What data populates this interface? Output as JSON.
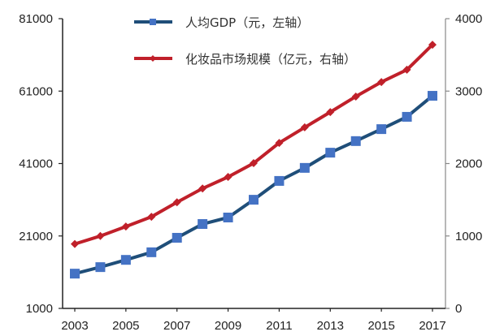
{
  "chart_data": {
    "type": "line",
    "title": "",
    "xlabel": "",
    "ylabel_left": "",
    "ylabel_right": "",
    "x": [
      2003,
      2004,
      2005,
      2006,
      2007,
      2008,
      2009,
      2010,
      2011,
      2012,
      2013,
      2014,
      2015,
      2016,
      2017
    ],
    "x_tick_labels": [
      "2003",
      "2005",
      "2007",
      "2009",
      "2011",
      "2013",
      "2015",
      "2017"
    ],
    "y_left": {
      "range": [
        1000,
        81000
      ],
      "ticks": [
        "1000",
        "21000",
        "41000",
        "61000",
        "81000"
      ]
    },
    "y_right": {
      "range": [
        0,
        4000
      ],
      "ticks": [
        "0",
        "1000",
        "2000",
        "3000",
        "4000"
      ]
    },
    "grid": false,
    "legend_position": "top-center",
    "series": [
      {
        "name": "人均GDP（元，左轴）",
        "axis": "left",
        "color": "#1F4E79",
        "marker_color": "#4472C4",
        "marker": "square",
        "values": [
          10600,
          12400,
          14400,
          16500,
          20500,
          24300,
          26100,
          31000,
          36200,
          39800,
          44000,
          47200,
          50500,
          53900,
          59700
        ]
      },
      {
        "name": "化妆品市场规模（亿元，右轴）",
        "axis": "right",
        "color": "#C0202A",
        "marker_color": "#C0202A",
        "marker": "diamond",
        "values": [
          890,
          1000,
          1130,
          1265,
          1465,
          1655,
          1815,
          2005,
          2285,
          2500,
          2710,
          2925,
          3125,
          3295,
          3640
        ]
      }
    ]
  },
  "legend": {
    "gdp_label": "人均GDP（元，左轴）",
    "cosmetics_label": "化妆品市场规模（亿元，右轴）"
  }
}
